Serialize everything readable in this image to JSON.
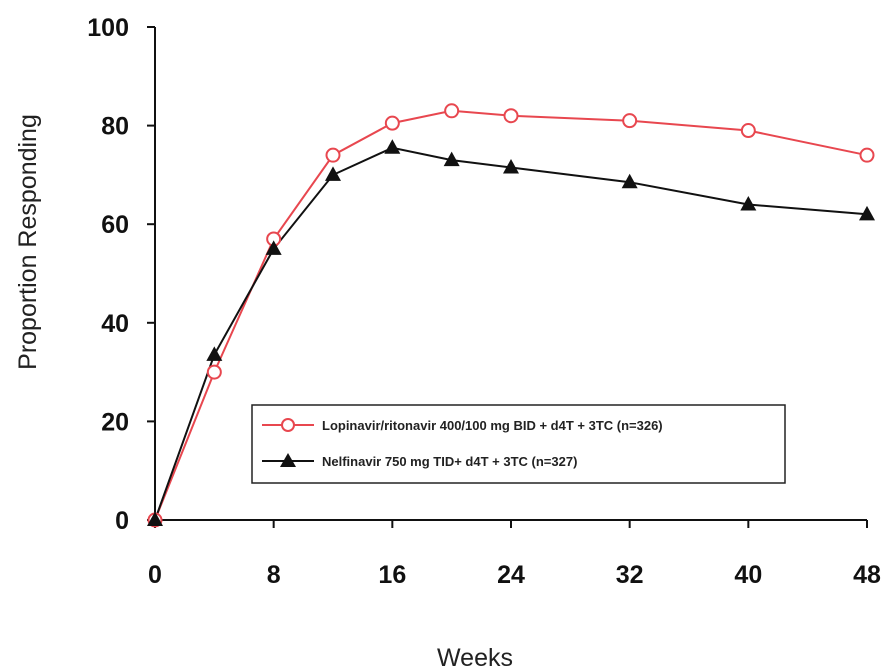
{
  "chart_data": {
    "type": "line",
    "xlabel": "Weeks",
    "ylabel": "Proportion Responding",
    "xlim": [
      0,
      48
    ],
    "ylim": [
      0,
      100
    ],
    "x_ticks": [
      0,
      8,
      16,
      24,
      32,
      40,
      48
    ],
    "y_ticks": [
      0,
      20,
      40,
      60,
      80,
      100
    ],
    "grid": false,
    "legend_position": "lower-right",
    "series": [
      {
        "name": "Lopinavir/ritonavir 400/100 mg BID + d4T + 3TC (n=326)",
        "color": "#e8474f",
        "marker": "open-circle",
        "x": [
          0,
          4,
          8,
          12,
          16,
          20,
          24,
          32,
          40,
          48
        ],
        "values": [
          0,
          30,
          57,
          74,
          80.5,
          83,
          82,
          81,
          79,
          74
        ]
      },
      {
        "name": "Nelfinavir 750 mg TID+ d4T + 3TC (n=327)",
        "color": "#111111",
        "marker": "filled-triangle",
        "x": [
          0,
          4,
          8,
          12,
          16,
          20,
          24,
          32,
          40,
          48
        ],
        "values": [
          0,
          33.5,
          55,
          70,
          75.5,
          73,
          71.5,
          68.5,
          64,
          62
        ]
      }
    ]
  }
}
